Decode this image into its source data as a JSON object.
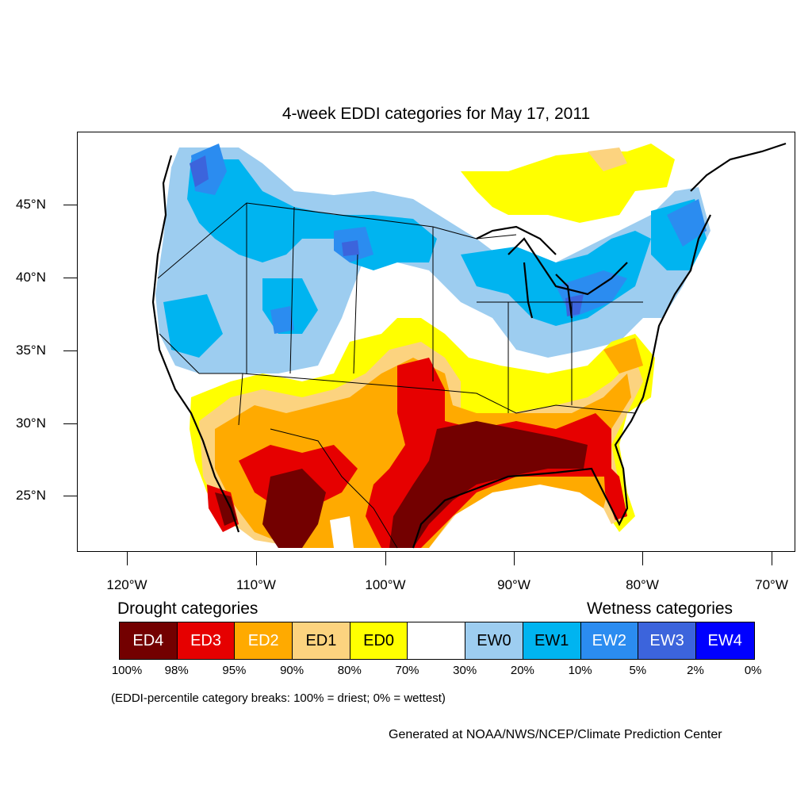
{
  "title": "4-week EDDI categories for May 17, 2011",
  "lat_labels": [
    "45°N",
    "40°N",
    "35°N",
    "30°N",
    "25°N"
  ],
  "lon_labels": [
    "120°W",
    "110°W",
    "100°W",
    "90°W",
    "80°W",
    "70°W"
  ],
  "legend": {
    "drought_heading": "Drought categories",
    "wetness_heading": "Wetness categories",
    "categories": [
      {
        "label": "ED4",
        "color": "#730000",
        "text_color": "#ffffff"
      },
      {
        "label": "ED3",
        "color": "#e60000",
        "text_color": "#ffffff"
      },
      {
        "label": "ED2",
        "color": "#ffaa00",
        "text_color": "#ffffff"
      },
      {
        "label": "ED1",
        "color": "#fcd37f",
        "text_color": "#000000"
      },
      {
        "label": "ED0",
        "color": "#ffff00",
        "text_color": "#000000"
      },
      {
        "label": "",
        "color": "#ffffff",
        "text_color": "#000000"
      },
      {
        "label": "EW0",
        "color": "#9dcdf0",
        "text_color": "#000000"
      },
      {
        "label": "EW1",
        "color": "#00b4f0",
        "text_color": "#000000"
      },
      {
        "label": "EW2",
        "color": "#2b8cf0",
        "text_color": "#ffffff"
      },
      {
        "label": "EW3",
        "color": "#3c64dc",
        "text_color": "#ffffff"
      },
      {
        "label": "EW4",
        "color": "#0000ff",
        "text_color": "#ffffff"
      }
    ],
    "percent_breaks": [
      "100%",
      "98%",
      "95%",
      "90%",
      "80%",
      "70%",
      "30%",
      "20%",
      "10%",
      "5%",
      "2%",
      "0%"
    ]
  },
  "note": "(EDDI-percentile category breaks: 100% = driest; 0% = wettest)",
  "credit": "Generated at NOAA/NWS/NCEP/Climate Prediction Center"
}
